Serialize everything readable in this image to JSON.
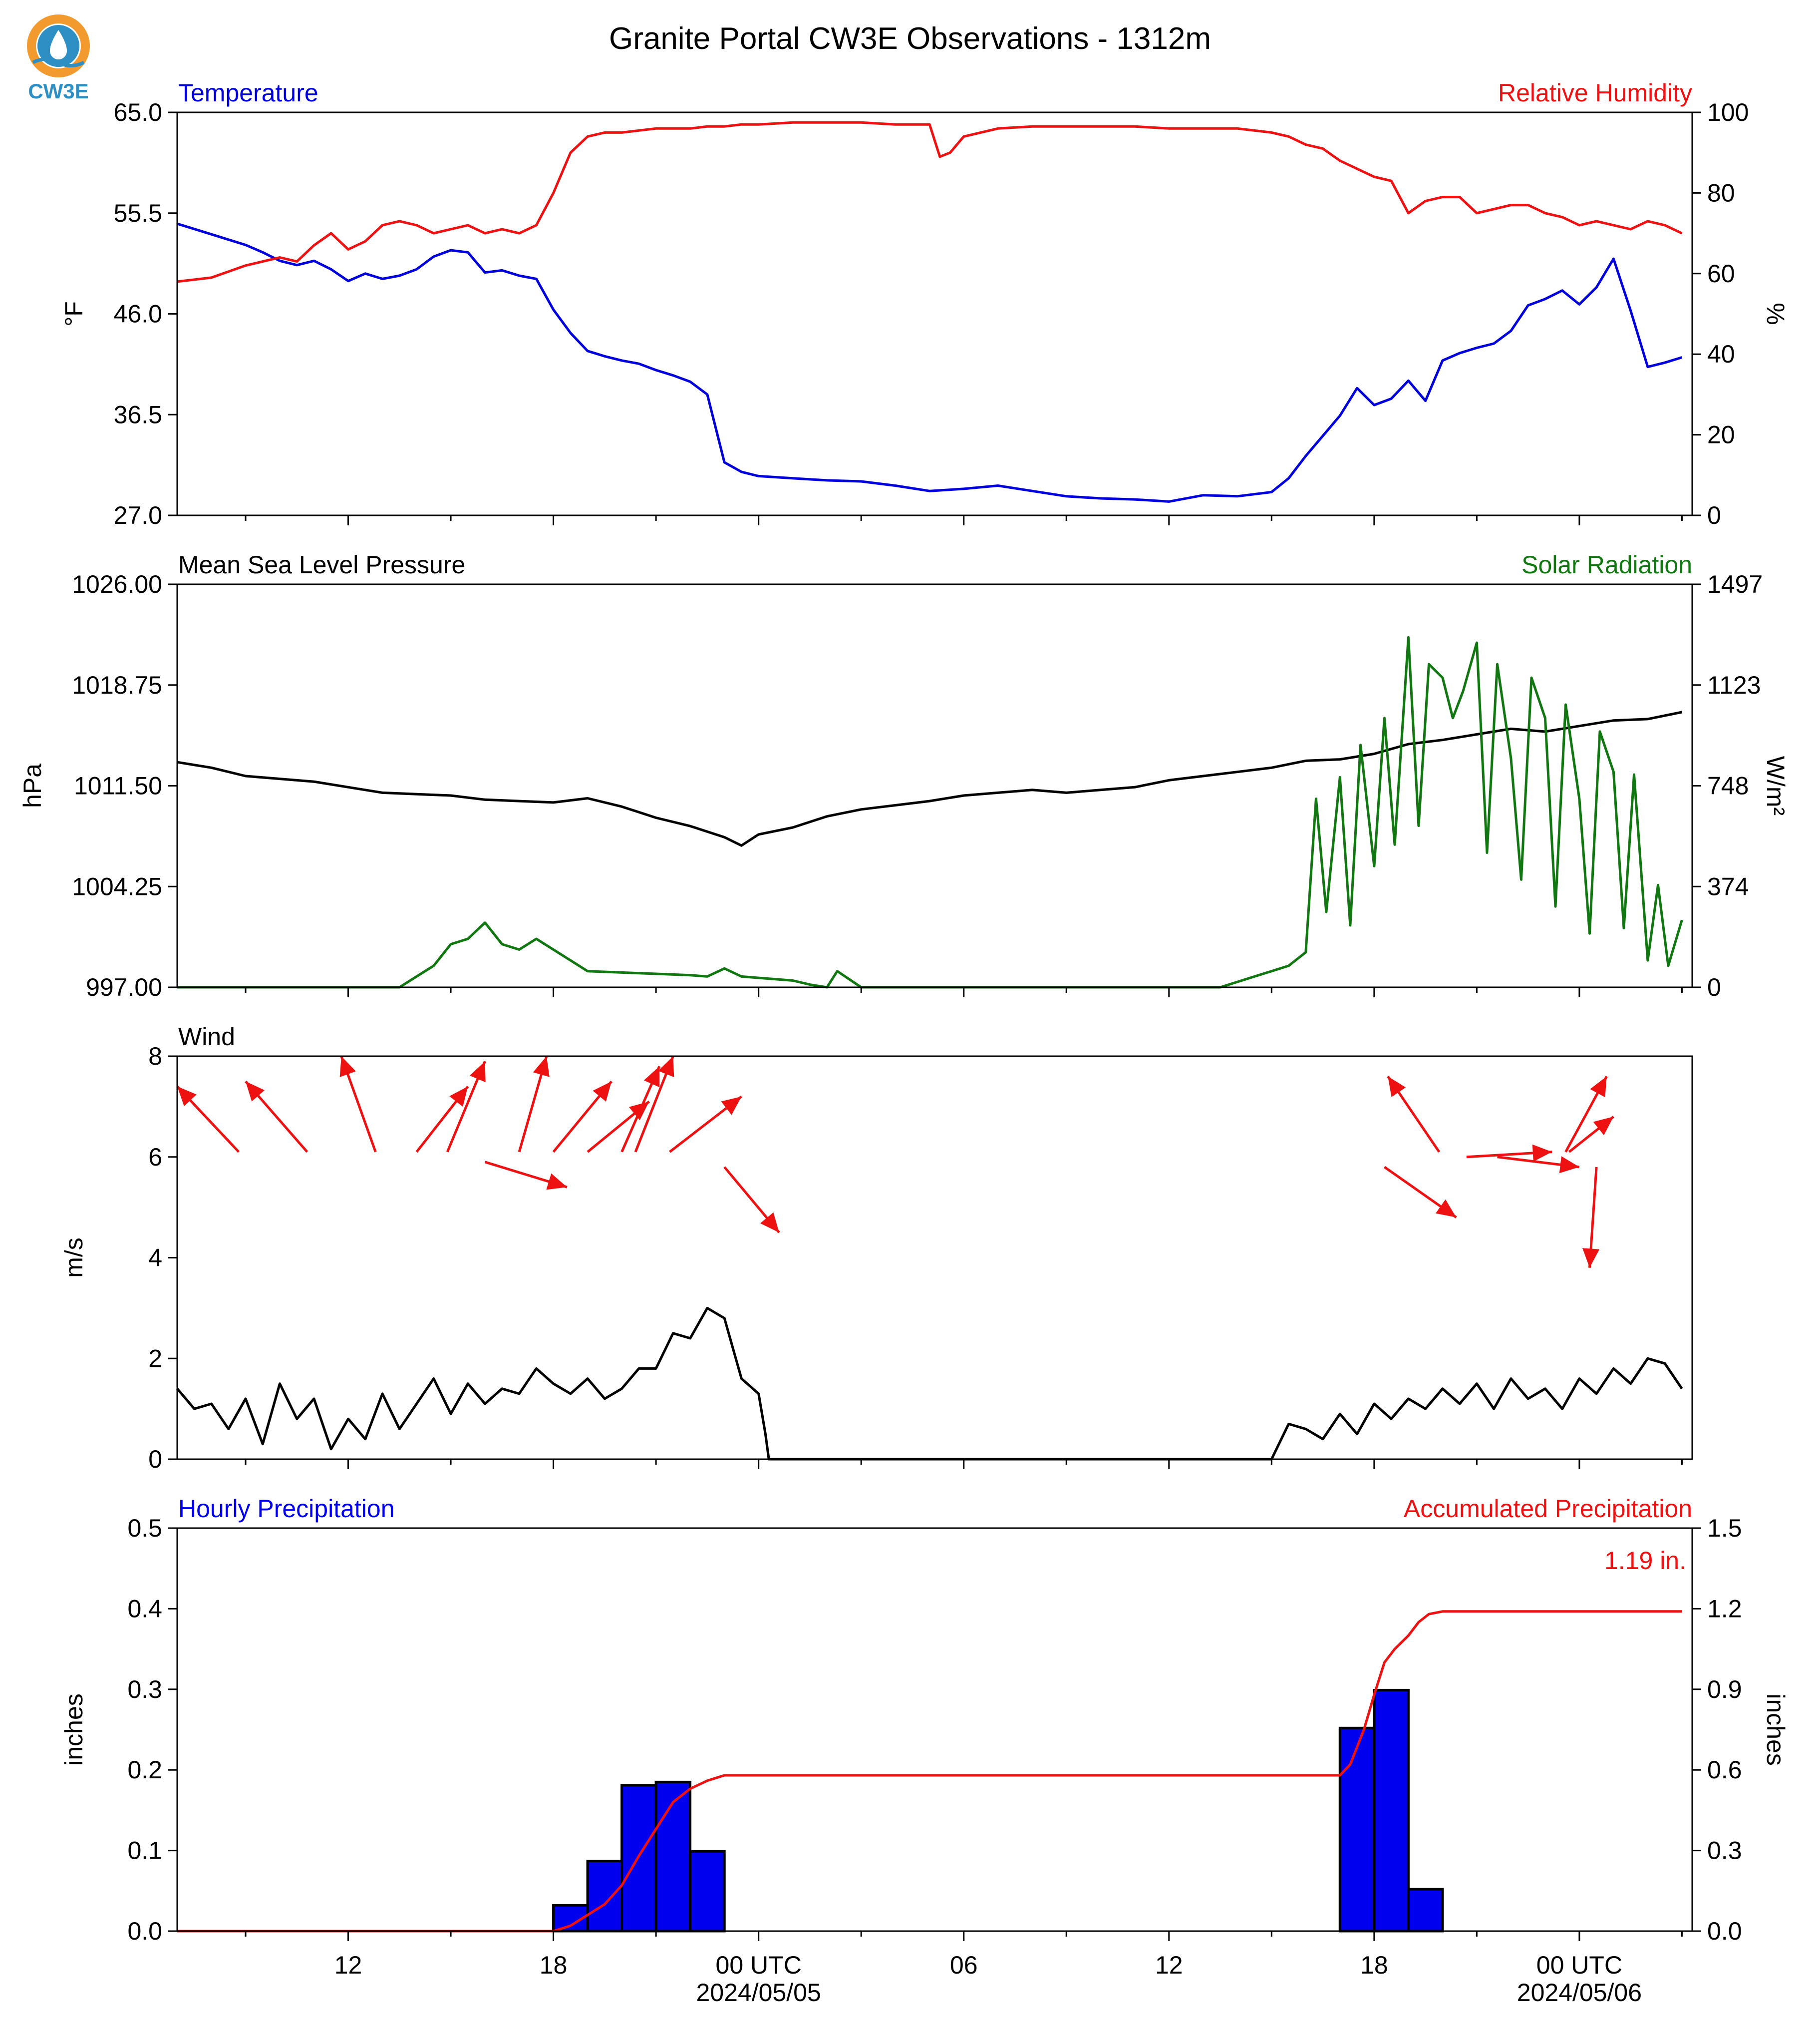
{
  "title": "Granite Portal CW3E Observations - 1312m",
  "logo": {
    "text": "CW3E",
    "icon": "water-drop-sun-icon"
  },
  "colors": {
    "temperature": "#0000dd",
    "humidity": "#ee1111",
    "pressure": "#000000",
    "solar": "#117711",
    "wind": "#000000",
    "wind_arrow": "#ee1111",
    "hourly_precip": "#0000ee",
    "accum_precip": "#ee1111",
    "logo_ring": "#f29a2e",
    "logo_blue": "#2d8fc4"
  },
  "x_axis": {
    "ticks": [
      {
        "label": "12",
        "sub": ""
      },
      {
        "label": "18",
        "sub": ""
      },
      {
        "label": "00 UTC",
        "sub": "2024/05/05"
      },
      {
        "label": "06",
        "sub": ""
      },
      {
        "label": "12",
        "sub": ""
      },
      {
        "label": "18",
        "sub": ""
      },
      {
        "label": "00 UTC",
        "sub": "2024/05/06"
      }
    ]
  },
  "chart_data": [
    {
      "type": "line",
      "id": "temp-rh",
      "left_title": "Temperature",
      "right_title": "Relative Humidity",
      "ylabel": "°F",
      "y2label": "%",
      "ylim": [
        27.0,
        65.0
      ],
      "y2lim": [
        0,
        100
      ],
      "yticks": [
        "27.0",
        "36.5",
        "46.0",
        "55.5",
        "65.0"
      ],
      "y2ticks": [
        "0",
        "20",
        "40",
        "60",
        "80",
        "100"
      ],
      "series": [
        {
          "name": "Temperature",
          "axis": "left",
          "x": [
            7,
            8,
            9,
            9.5,
            10,
            10.5,
            11,
            11.5,
            12,
            12.5,
            13,
            13.5,
            14,
            14.5,
            15,
            15.5,
            16,
            16.5,
            17,
            17.5,
            18,
            18.5,
            19,
            19.5,
            20,
            20.5,
            21,
            21.5,
            22,
            22.5,
            23,
            23.5,
            24,
            25,
            26,
            27,
            28,
            29,
            30,
            31,
            32,
            33,
            34,
            35,
            36,
            37,
            38,
            39,
            39.5,
            40,
            40.5,
            41,
            41.5,
            42,
            42.5,
            43,
            43.5,
            44,
            44.5,
            45,
            45.5,
            46,
            46.5,
            47,
            47.5,
            48,
            48.5,
            49,
            49.5,
            50,
            50.5,
            51
          ],
          "values": [
            54.5,
            53.5,
            52.5,
            51.8,
            51.0,
            50.6,
            51.0,
            50.2,
            49.1,
            49.8,
            49.3,
            49.6,
            50.2,
            51.4,
            52.0,
            51.8,
            49.9,
            50.1,
            49.6,
            49.3,
            46.4,
            44.2,
            42.5,
            42.0,
            41.6,
            41.3,
            40.7,
            40.2,
            39.6,
            38.4,
            32.0,
            31.1,
            30.7,
            30.5,
            30.3,
            30.2,
            29.8,
            29.3,
            29.5,
            29.8,
            29.3,
            28.8,
            28.6,
            28.5,
            28.3,
            28.9,
            28.8,
            29.2,
            30.5,
            32.6,
            34.5,
            36.4,
            39.0,
            37.4,
            38.0,
            39.7,
            37.8,
            41.6,
            42.3,
            42.8,
            43.2,
            44.4,
            46.8,
            47.4,
            48.2,
            46.9,
            48.5,
            51.2,
            46.3,
            41.0,
            41.4,
            41.9
          ]
        },
        {
          "name": "Relative Humidity",
          "axis": "right",
          "x": [
            7,
            8,
            9,
            9.5,
            10,
            10.5,
            11,
            11.5,
            12,
            12.5,
            13,
            13.5,
            14,
            14.5,
            15,
            15.5,
            16,
            16.5,
            17,
            17.5,
            18,
            18.5,
            19,
            19.5,
            20,
            20.5,
            21,
            21.5,
            22,
            22.5,
            23,
            23.5,
            24,
            25,
            26,
            27,
            28,
            29,
            29.3,
            29.6,
            30,
            31,
            32,
            33,
            34,
            35,
            36,
            37,
            38,
            39,
            39.5,
            40,
            40.5,
            41,
            41.5,
            42,
            42.5,
            43,
            43.5,
            44,
            44.5,
            45,
            45.5,
            46,
            46.5,
            47,
            47.5,
            48,
            48.5,
            49,
            49.5,
            50,
            50.5,
            51
          ],
          "values": [
            58,
            59,
            62,
            63,
            64,
            63,
            67,
            70,
            66,
            68,
            72,
            73,
            72,
            70,
            71,
            72,
            70,
            71,
            70,
            72,
            80,
            90,
            94,
            95,
            95,
            95.5,
            96,
            96,
            96,
            96.5,
            96.5,
            97,
            97,
            97.5,
            97.5,
            97.5,
            97,
            97,
            89,
            90,
            94,
            96,
            96.5,
            96.5,
            96.5,
            96.5,
            96,
            96,
            96,
            95,
            94,
            92,
            91,
            88,
            86,
            84,
            83,
            75,
            78,
            79,
            79,
            75,
            76,
            77,
            77,
            75,
            74,
            72,
            73,
            72,
            71,
            73,
            72,
            70
          ]
        }
      ]
    },
    {
      "type": "line",
      "id": "pressure-solar",
      "left_title": "Mean Sea Level Pressure",
      "right_title": "Solar Radiation",
      "ylabel": "hPa",
      "y2label": "W/m²",
      "ylim": [
        997.0,
        1026.0
      ],
      "y2lim": [
        0,
        1497
      ],
      "yticks": [
        "997.00",
        "1004.25",
        "1011.50",
        "1018.75",
        "1026.00"
      ],
      "y2ticks": [
        "0",
        "374",
        "748",
        "1123",
        "1497"
      ],
      "series": [
        {
          "name": "Mean Sea Level Pressure",
          "axis": "left",
          "x": [
            7,
            8,
            9,
            10,
            11,
            12,
            13,
            14,
            15,
            16,
            17,
            18,
            19,
            20,
            21,
            22,
            23,
            23.5,
            24,
            25,
            26,
            27,
            28,
            29,
            30,
            31,
            32,
            33,
            34,
            35,
            36,
            37,
            38,
            39,
            40,
            41,
            42,
            43,
            44,
            45,
            46,
            47,
            48,
            49,
            50,
            51
          ],
          "values": [
            1013.2,
            1012.8,
            1012.2,
            1012.0,
            1011.8,
            1011.4,
            1011.0,
            1010.9,
            1010.8,
            1010.5,
            1010.4,
            1010.3,
            1010.6,
            1010.0,
            1009.2,
            1008.6,
            1007.8,
            1007.2,
            1008.0,
            1008.5,
            1009.3,
            1009.8,
            1010.1,
            1010.4,
            1010.8,
            1011.0,
            1011.2,
            1011.0,
            1011.2,
            1011.4,
            1011.9,
            1012.2,
            1012.5,
            1012.8,
            1013.3,
            1013.4,
            1013.8,
            1014.5,
            1014.8,
            1015.2,
            1015.6,
            1015.4,
            1015.8,
            1016.2,
            1016.3,
            1016.8
          ]
        },
        {
          "name": "Solar Radiation",
          "axis": "right",
          "x": [
            7,
            13.5,
            14,
            14.5,
            15,
            15.5,
            16,
            16.5,
            17,
            17.5,
            18,
            18.5,
            19,
            20,
            21,
            22,
            22.5,
            23,
            23.5,
            24,
            25,
            25.5,
            26,
            26.3,
            27,
            30,
            33,
            36,
            37.5,
            38.5,
            39,
            39.5,
            40,
            40.3,
            40.6,
            41,
            41.3,
            41.6,
            42,
            42.3,
            42.6,
            43,
            43.3,
            43.6,
            44,
            44.3,
            44.6,
            45,
            45.3,
            45.6,
            46,
            46.3,
            46.6,
            47,
            47.3,
            47.6,
            48,
            48.3,
            48.6,
            49,
            49.3,
            49.6,
            50,
            50.3,
            50.6,
            51
          ],
          "values": [
            0,
            0,
            40,
            80,
            160,
            180,
            240,
            160,
            140,
            180,
            140,
            100,
            60,
            55,
            50,
            45,
            40,
            70,
            40,
            35,
            25,
            10,
            0,
            60,
            0,
            0,
            0,
            0,
            0,
            40,
            60,
            80,
            130,
            700,
            280,
            780,
            230,
            900,
            450,
            1000,
            530,
            1300,
            600,
            1200,
            1150,
            1000,
            1100,
            1280,
            500,
            1200,
            850,
            400,
            1150,
            1000,
            300,
            1050,
            700,
            200,
            950,
            800,
            220,
            790,
            100,
            380,
            80,
            250
          ]
        }
      ]
    },
    {
      "type": "line",
      "id": "wind",
      "left_title": "Wind",
      "ylabel": "m/s",
      "ylim": [
        0,
        8
      ],
      "yticks": [
        "0",
        "2",
        "4",
        "6",
        "8"
      ],
      "series": [
        {
          "name": "Wind",
          "axis": "left",
          "x": [
            7,
            7.5,
            8,
            8.5,
            9,
            9.5,
            10,
            10.5,
            11,
            11.5,
            12,
            12.5,
            13,
            13.5,
            14,
            14.5,
            15,
            15.5,
            16,
            16.5,
            17,
            17.5,
            18,
            18.5,
            19,
            19.5,
            20,
            20.5,
            21,
            21.5,
            22,
            22.5,
            23,
            23.5,
            24,
            24.2,
            24.3,
            39,
            39.5,
            40,
            40.5,
            41,
            41.5,
            42,
            42.5,
            43,
            43.5,
            44,
            44.5,
            45,
            45.5,
            46,
            46.5,
            47,
            47.5,
            48,
            48.5,
            49,
            49.5,
            50,
            50.5,
            51
          ],
          "values": [
            1.4,
            1.0,
            1.1,
            0.6,
            1.2,
            0.3,
            1.5,
            0.8,
            1.2,
            0.2,
            0.8,
            0.4,
            1.3,
            0.6,
            1.1,
            1.6,
            0.9,
            1.5,
            1.1,
            1.4,
            1.3,
            1.8,
            1.5,
            1.3,
            1.6,
            1.2,
            1.4,
            1.8,
            1.8,
            2.5,
            2.4,
            3.0,
            2.8,
            1.6,
            1.3,
            0.5,
            0,
            0,
            0.7,
            0.6,
            0.4,
            0.9,
            0.5,
            1.1,
            0.8,
            1.2,
            1.0,
            1.4,
            1.1,
            1.5,
            1.0,
            1.6,
            1.2,
            1.4,
            1.0,
            1.6,
            1.3,
            1.8,
            1.5,
            2.0,
            1.9,
            1.4
          ]
        }
      ],
      "wind_arrows": {
        "description_unit": "arrow tail (x hours, y m/s) to head (x hours, y m/s)",
        "arrows": [
          {
            "x0": 8.8,
            "y0": 6.1,
            "x1": 7.0,
            "y1": 7.4
          },
          {
            "x0": 10.8,
            "y0": 6.1,
            "x1": 9.0,
            "y1": 7.5
          },
          {
            "x0": 12.8,
            "y0": 6.1,
            "x1": 11.8,
            "y1": 8.0
          },
          {
            "x0": 14.0,
            "y0": 6.1,
            "x1": 15.5,
            "y1": 7.4
          },
          {
            "x0": 14.9,
            "y0": 6.1,
            "x1": 16.0,
            "y1": 7.9
          },
          {
            "x0": 16.0,
            "y0": 5.9,
            "x1": 18.4,
            "y1": 5.4
          },
          {
            "x0": 17.0,
            "y0": 6.1,
            "x1": 17.8,
            "y1": 8.0
          },
          {
            "x0": 18.0,
            "y0": 6.1,
            "x1": 19.7,
            "y1": 7.5
          },
          {
            "x0": 19.0,
            "y0": 6.1,
            "x1": 20.8,
            "y1": 7.1
          },
          {
            "x0": 20.0,
            "y0": 6.1,
            "x1": 21.1,
            "y1": 7.8
          },
          {
            "x0": 20.4,
            "y0": 6.1,
            "x1": 21.5,
            "y1": 8.0
          },
          {
            "x0": 21.4,
            "y0": 6.1,
            "x1": 23.5,
            "y1": 7.2
          },
          {
            "x0": 23.0,
            "y0": 5.8,
            "x1": 24.6,
            "y1": 4.5
          },
          {
            "x0": 43.9,
            "y0": 6.1,
            "x1": 42.4,
            "y1": 7.6
          },
          {
            "x0": 42.3,
            "y0": 5.8,
            "x1": 44.4,
            "y1": 4.8
          },
          {
            "x0": 44.7,
            "y0": 6.0,
            "x1": 47.2,
            "y1": 6.1
          },
          {
            "x0": 45.6,
            "y0": 6.0,
            "x1": 48.0,
            "y1": 5.8
          },
          {
            "x0": 47.6,
            "y0": 6.1,
            "x1": 48.8,
            "y1": 7.6
          },
          {
            "x0": 47.7,
            "y0": 6.1,
            "x1": 49.0,
            "y1": 6.8
          },
          {
            "x0": 48.5,
            "y0": 5.8,
            "x1": 48.3,
            "y1": 3.8
          }
        ]
      }
    },
    {
      "type": "bar",
      "id": "precip",
      "left_title": "Hourly Precipitation",
      "right_title": "Accumulated Precipitation",
      "ylabel": "inches",
      "y2label": "inches",
      "ylim": [
        0.0,
        0.5
      ],
      "y2lim": [
        0.0,
        1.5
      ],
      "yticks": [
        "0.0",
        "0.1",
        "0.2",
        "0.3",
        "0.4",
        "0.5"
      ],
      "y2ticks": [
        "0.0",
        "0.3",
        "0.6",
        "0.9",
        "1.2",
        "1.5"
      ],
      "annotation": "1.19 in.",
      "bars": {
        "name": "Hourly Precipitation",
        "x_start": [
          18,
          19,
          20,
          21,
          22,
          41,
          42,
          43
        ],
        "values": [
          0.032,
          0.087,
          0.181,
          0.185,
          0.099,
          0.252,
          0.299,
          0.052
        ]
      },
      "series": [
        {
          "name": "Accumulated Precipitation",
          "axis": "right",
          "x": [
            7,
            18,
            18.5,
            19,
            19.5,
            20,
            20.5,
            21,
            21.5,
            22,
            22.5,
            23,
            24,
            30,
            36,
            41,
            41.3,
            41.7,
            42,
            42.3,
            42.6,
            43,
            43.3,
            43.6,
            44,
            47,
            51
          ],
          "values": [
            0,
            0,
            0.02,
            0.06,
            0.1,
            0.17,
            0.28,
            0.38,
            0.48,
            0.53,
            0.56,
            0.58,
            0.58,
            0.58,
            0.58,
            0.58,
            0.62,
            0.75,
            0.88,
            1.0,
            1.05,
            1.1,
            1.15,
            1.18,
            1.19,
            1.19,
            1.19
          ]
        }
      ]
    }
  ]
}
